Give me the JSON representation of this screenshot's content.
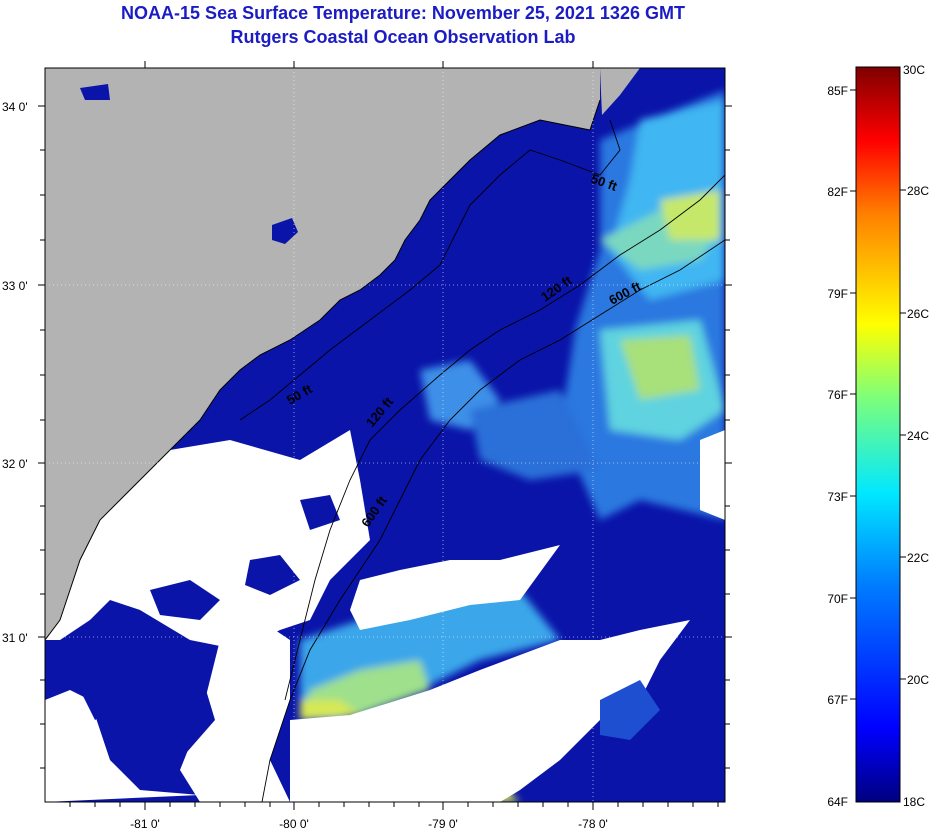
{
  "title": {
    "line1": "NOAA-15 Sea Surface Temperature:  November 25, 2021 1326 GMT",
    "line2": "Rutgers Coastal Ocean Observation Lab"
  },
  "map": {
    "lat_labels": [
      "34 0'",
      "33 0'",
      "32 0'",
      "31 0'"
    ],
    "lon_labels": [
      "-81 0'",
      "-80 0'",
      "-79 0'",
      "-78 0'"
    ],
    "contours": [
      "50 ft",
      "50 ft",
      "120 ft",
      "120 ft",
      "600 ft",
      "600 ft"
    ],
    "colors": {
      "land": "#b3b3b3",
      "cloud": "#ffffff",
      "cold_water": "#0a14a8",
      "mid_water": "#2f80e8",
      "warm_water": "#b8e85a"
    }
  },
  "colorbar": {
    "fahrenheit_labels": [
      "85F",
      "82F",
      "79F",
      "76F",
      "73F",
      "70F",
      "67F",
      "64F"
    ],
    "celsius_labels": [
      "30C",
      "28C",
      "26C",
      "24C",
      "22C",
      "20C",
      "18C"
    ],
    "range_c": [
      18,
      30
    ],
    "range_f": [
      64,
      86
    ]
  }
}
